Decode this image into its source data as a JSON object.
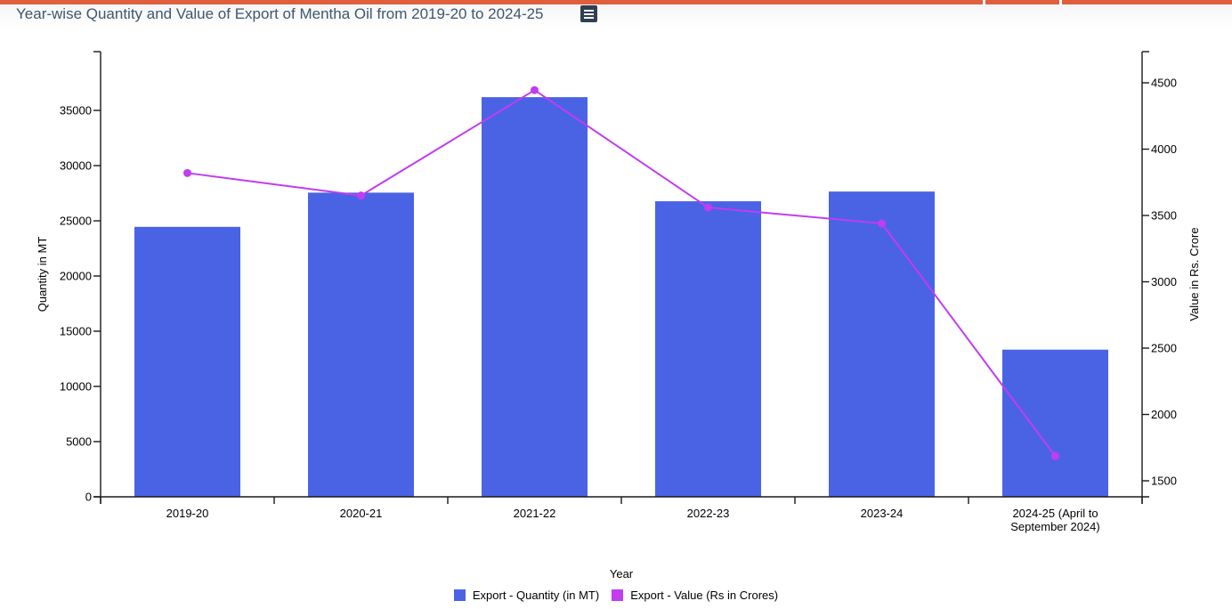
{
  "page": {
    "top_bar_color": "#df5f3c",
    "menu_icon": "hamburger-menu-icon"
  },
  "chart_data": {
    "type": "bar",
    "subtype": "combo-column-line-dual-axis",
    "title": "Year-wise Quantity and Value of Export of Mentha Oil from 2019-20 to 2024-25",
    "xlabel": "Year",
    "grid": false,
    "legend_position": "bottom",
    "categories": [
      "2019-20",
      "2020-21",
      "2021-22",
      "2022-23",
      "2023-24",
      "2024-25 (April to September 2024)"
    ],
    "series": [
      {
        "name": "Export - Quantity (in MT)",
        "type": "bar",
        "axis": "left",
        "color": "#4a63e5",
        "values": [
          24450,
          27550,
          36200,
          26770,
          27650,
          13330
        ]
      },
      {
        "name": "Export - Value (Rs in Crores)",
        "type": "line",
        "axis": "right",
        "color": "#c23cf0",
        "values": [
          3820,
          3650,
          4445,
          3560,
          3440,
          1685
        ]
      }
    ],
    "left_axis": {
      "label": "Quantity in MT",
      "min": 0,
      "max": 35000,
      "tick_step": 5000,
      "ticks": [
        0,
        5000,
        10000,
        15000,
        20000,
        25000,
        30000,
        35000
      ]
    },
    "right_axis": {
      "label": "Value in Rs. Crore",
      "min": 1500,
      "max": 4500,
      "tick_step": 500,
      "ticks": [
        1500,
        2000,
        2500,
        3000,
        3500,
        4000,
        4500
      ]
    }
  }
}
